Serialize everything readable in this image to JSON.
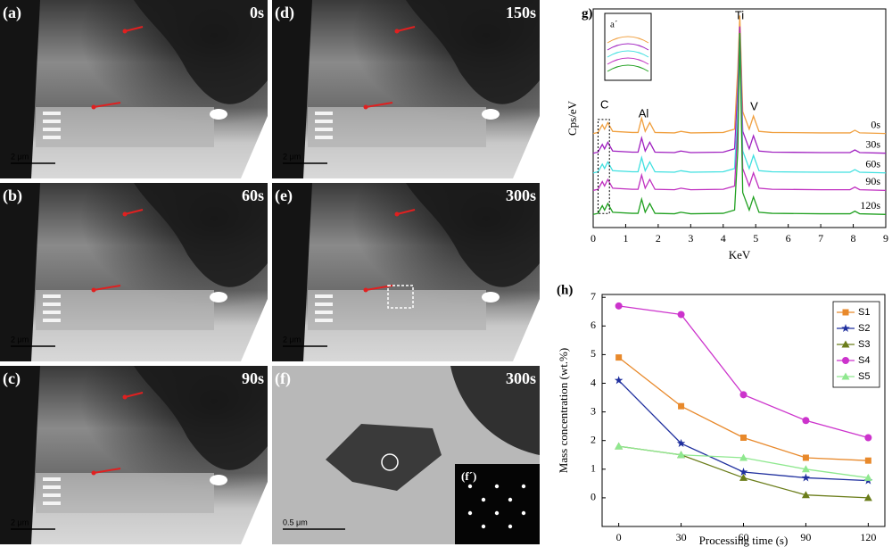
{
  "panels": [
    {
      "label": "(a)",
      "time": "0s",
      "scale": "2 μm"
    },
    {
      "label": "(d)",
      "time": "150s",
      "scale": "2 μm"
    },
    {
      "label": "(b)",
      "time": "60s",
      "scale": "2 μm"
    },
    {
      "label": "(e)",
      "time": "300s",
      "scale": "2 μm"
    },
    {
      "label": "(c)",
      "time": "90s",
      "scale": "2 μm"
    },
    {
      "label": "(f)",
      "time": "300s",
      "scale": "0.5 μm",
      "inset_label": "(f´)"
    }
  ],
  "chart_data": [
    {
      "type": "spectrum",
      "panel_label": "g)",
      "x_label": "KeV",
      "y_label": "Cps/eV",
      "annotations": [
        "C",
        "Al",
        "Ti",
        "V"
      ],
      "inset_label": "a´",
      "xlim": [
        0,
        9
      ],
      "xticks": [
        0,
        1,
        2,
        3,
        4,
        5,
        6,
        7,
        8,
        9
      ],
      "ylim": [
        0,
        100
      ],
      "x": [
        0,
        0.15,
        0.28,
        0.35,
        0.45,
        0.6,
        1.2,
        1.38,
        1.49,
        1.6,
        1.74,
        1.9,
        2.5,
        2.7,
        3,
        4.0,
        4.35,
        4.45,
        4.51,
        4.6,
        4.8,
        4.93,
        5.1,
        5.5,
        7,
        7.9,
        8.05,
        8.2,
        9
      ],
      "series": [
        {
          "name": "0s",
          "color": "#f0a040",
          "values": [
            43,
            43.5,
            47,
            45,
            48,
            44,
            43.5,
            43.5,
            50,
            44,
            48,
            43.5,
            43.3,
            44,
            43.3,
            43.5,
            45,
            73,
            97,
            53,
            45,
            51,
            44,
            43.5,
            43.3,
            43.3,
            44.5,
            43.3,
            43
          ]
        },
        {
          "name": "30s",
          "color": "#a020c0",
          "values": [
            34,
            34.5,
            38,
            36,
            39,
            35,
            34.5,
            34.5,
            41,
            35,
            39,
            34.5,
            34.3,
            35,
            34.3,
            34.5,
            36,
            64,
            92,
            44,
            36,
            42,
            35,
            34.5,
            34.3,
            34.3,
            35.5,
            34.3,
            34
          ]
        },
        {
          "name": "60s",
          "color": "#40e0e0",
          "values": [
            25,
            25.5,
            29,
            27,
            30,
            26,
            25.5,
            25.5,
            32,
            26,
            30,
            25.5,
            25.3,
            26,
            25.3,
            25.5,
            27,
            55,
            88,
            35,
            27,
            33,
            26,
            25.5,
            25.3,
            25.3,
            26.5,
            25.3,
            25
          ]
        },
        {
          "name": "90s",
          "color": "#c030c0",
          "values": [
            17,
            17.5,
            21,
            19,
            22,
            18,
            17.5,
            17.5,
            24,
            18,
            22,
            17.5,
            17.3,
            18,
            17.3,
            17.5,
            19,
            47,
            86,
            27,
            19,
            25,
            18,
            17.5,
            17.3,
            17.3,
            18.5,
            17.3,
            17
          ]
        },
        {
          "name": "120s",
          "color": "#20a020",
          "values": [
            6,
            6.5,
            10,
            8,
            11,
            7,
            6.5,
            6.5,
            13,
            7,
            11,
            6.5,
            6.3,
            7,
            6.3,
            6.5,
            8,
            36,
            89,
            16,
            8,
            14,
            7,
            6.5,
            6.3,
            6.3,
            7.5,
            6.3,
            6
          ]
        }
      ]
    },
    {
      "type": "line",
      "panel_label": "(h)",
      "x_label": "Processing time (s)",
      "y_label": "Mass concentration (wt.%)",
      "x": [
        0,
        30,
        60,
        90,
        120
      ],
      "xlim": [
        -8,
        128
      ],
      "xticks": [
        0,
        30,
        60,
        90,
        120
      ],
      "ylim": [
        -1,
        7.1
      ],
      "yticks": [
        0,
        1,
        2,
        3,
        4,
        5,
        6,
        7
      ],
      "legend": "upper right",
      "series": [
        {
          "name": "S1",
          "color": "#e8892b",
          "marker": "square",
          "values": [
            4.9,
            3.2,
            2.1,
            1.4,
            1.3
          ]
        },
        {
          "name": "S2",
          "color": "#1f2f9e",
          "marker": "star",
          "values": [
            4.1,
            1.9,
            0.9,
            0.7,
            0.6
          ]
        },
        {
          "name": "S3",
          "color": "#6b7d1a",
          "marker": "triangle",
          "values": [
            1.8,
            1.5,
            0.7,
            0.1,
            0.0
          ]
        },
        {
          "name": "S4",
          "color": "#cc33cc",
          "marker": "circle",
          "values": [
            6.7,
            6.4,
            3.6,
            2.7,
            2.1
          ]
        },
        {
          "name": "S5",
          "color": "#8fe88f",
          "marker": "triangle",
          "values": [
            1.8,
            1.5,
            1.4,
            1.0,
            0.7
          ]
        }
      ]
    }
  ]
}
